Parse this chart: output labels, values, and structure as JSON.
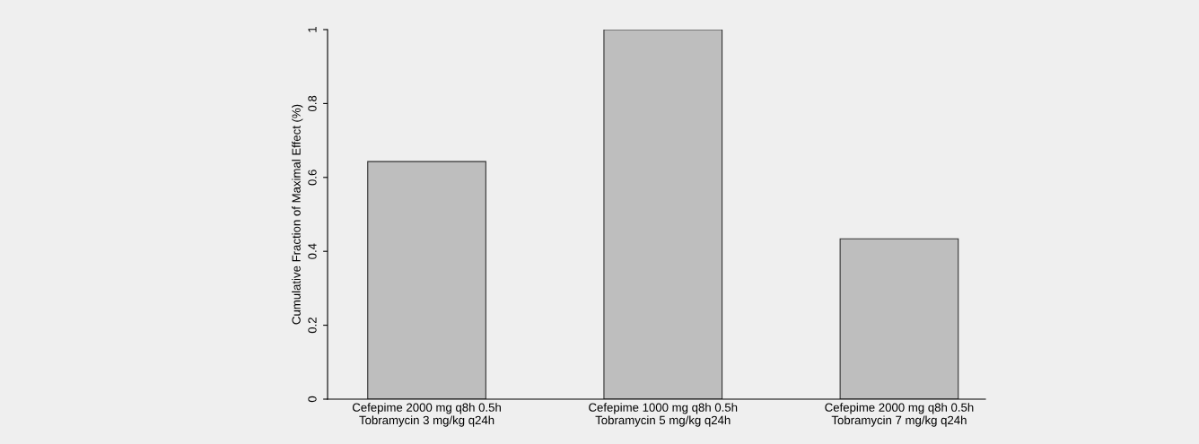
{
  "chart_data": {
    "type": "bar",
    "ylabel": "Cumulative Fraction of Maximal Effect (%)",
    "categories": [
      "Cefepime 2000 mg q8h 0.5h\nTobramycin 3 mg/kg q24h",
      "Cefepime 1000 mg q8h 0.5h\nTobramycin 5 mg/kg q24h",
      "Cefepime 2000 mg q8h 0.5h\nTobramycin 7 mg/kg q24h"
    ],
    "values": [
      0.643,
      1,
      0.434
    ],
    "color": "#bebebe",
    "ylim": [
      0,
      1
    ],
    "yticks": [
      0,
      0.2,
      0.4,
      0.6,
      0.8,
      1
    ],
    "grid": false,
    "legend": false
  }
}
